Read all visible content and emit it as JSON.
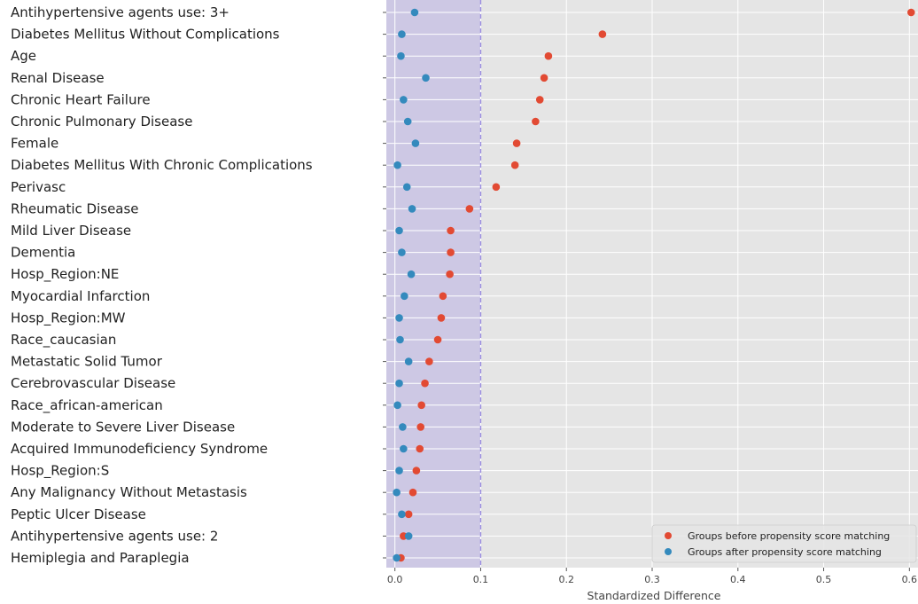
{
  "colors": {
    "plot_bg": "#E5E5E5",
    "grid": "#FFFFFF",
    "shade": "#B0A4E3",
    "threshold_line": "#9C8FE0",
    "before": "#E24A33",
    "after": "#348ABD"
  },
  "chart_data": {
    "type": "scatter",
    "title": "",
    "xlabel": "Standardized Difference",
    "ylabel": "",
    "xlim": [
      -0.01,
      0.61
    ],
    "xticks": [
      0.0,
      0.1,
      0.2,
      0.3,
      0.4,
      0.5,
      0.6
    ],
    "xtick_labels": [
      "0.0",
      "0.1",
      "0.2",
      "0.3",
      "0.4",
      "0.5",
      "0.6"
    ],
    "threshold": 0.1,
    "grid": true,
    "legend_position": "bottom-right",
    "categories": [
      "Antihypertensive agents use: 3+",
      "Diabetes Mellitus Without Complications",
      "Age",
      "Renal Disease",
      "Chronic Heart Failure",
      "Chronic Pulmonary Disease",
      "Female",
      "Diabetes Mellitus With Chronic Complications",
      "Perivasc",
      "Rheumatic Disease",
      "Mild Liver Disease",
      "Dementia",
      "Hosp_Region:NE",
      "Myocardial Infarction",
      "Hosp_Region:MW",
      "Race_caucasian",
      "Metastatic Solid Tumor",
      "Cerebrovascular Disease",
      "Race_african-american",
      "Moderate to Severe Liver Disease",
      "Acquired Immunodeficiency Syndrome",
      "Hosp_Region:S",
      "Any Malignancy Without Metastasis",
      "Peptic Ulcer Disease",
      "Antihypertensive agents use: 2",
      "Hemiplegia and Paraplegia"
    ],
    "series": [
      {
        "name": "Groups before propensity score matching",
        "values": [
          0.602,
          0.242,
          0.179,
          0.174,
          0.169,
          0.164,
          0.142,
          0.14,
          0.118,
          0.087,
          0.065,
          0.065,
          0.064,
          0.056,
          0.054,
          0.05,
          0.04,
          0.035,
          0.031,
          0.03,
          0.029,
          0.025,
          0.021,
          0.016,
          0.01,
          0.007
        ]
      },
      {
        "name": "Groups after propensity score matching",
        "values": [
          0.023,
          0.008,
          0.007,
          0.036,
          0.01,
          0.015,
          0.024,
          0.003,
          0.014,
          0.02,
          0.005,
          0.008,
          0.019,
          0.011,
          0.005,
          0.006,
          0.016,
          0.005,
          0.003,
          0.009,
          0.01,
          0.005,
          0.002,
          0.008,
          0.016,
          0.002
        ]
      }
    ]
  }
}
